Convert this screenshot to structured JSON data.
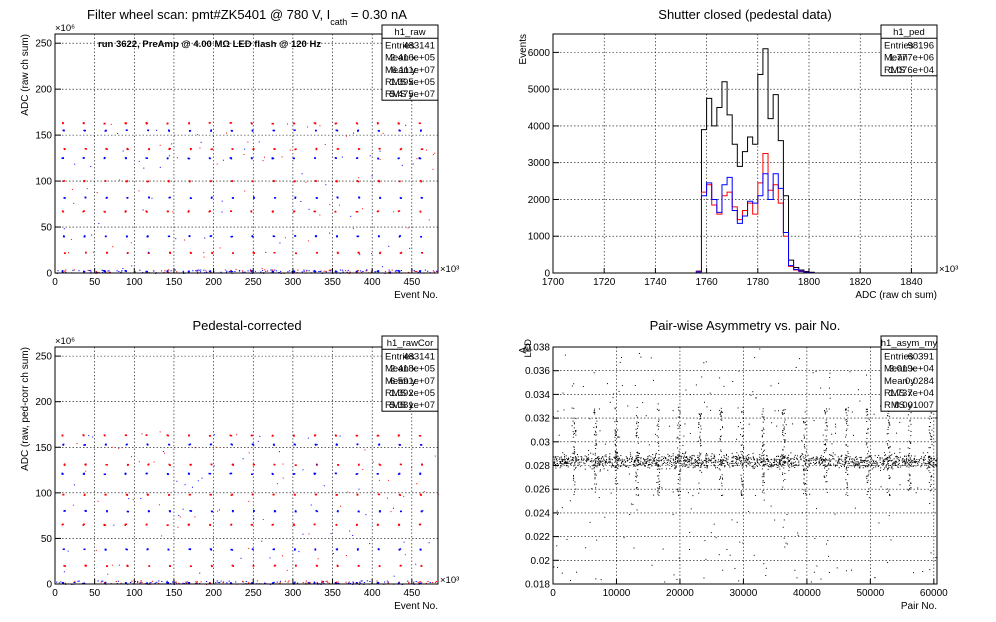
{
  "chart_data": [
    {
      "type": "scatter",
      "title": "Filter wheel scan: pmt#ZK5401 @   780 V, I",
      "title_sub": "cath",
      "title_tail": " = 0.30 nA",
      "annotation": "run 3622, PreAmp @ 4.00 MΩ LED flash @  120 Hz",
      "xlabel": "Event No.",
      "ylabel": "ADC (raw ch sum)",
      "x_exponent": "×10³",
      "y_exponent": "×10⁶",
      "xlim": [
        0,
        483
      ],
      "ylim": [
        0,
        260
      ],
      "x_ticks": [
        0,
        50,
        100,
        150,
        200,
        250,
        300,
        350,
        400,
        450
      ],
      "x_tick_labels": [
        "0",
        "50",
        "100",
        "150",
        "200",
        "250",
        "300",
        "350",
        "400",
        "450"
      ],
      "y_ticks": [
        0,
        50,
        100,
        150,
        200,
        250
      ],
      "y_tick_labels": [
        "0",
        "50",
        "100",
        "150",
        "200",
        "250"
      ],
      "levels": [
        163,
        155,
        135,
        125,
        100,
        82,
        67,
        40,
        22,
        2
      ],
      "period": 26.5,
      "stats": {
        "name": "h1_raw",
        "rows": [
          {
            "label": "Entries",
            "value": "483141"
          },
          {
            "label": "Mean x",
            "value": "2.416e+05"
          },
          {
            "label": "Mean y",
            "value": "6.111e+07"
          },
          {
            "label": "RMS x",
            "value": "1.395e+05"
          },
          {
            "label": "RMS y",
            "value": "5.475e+07"
          }
        ]
      },
      "colors": {
        "a": "#0000ff",
        "b": "#ff0000"
      }
    },
    {
      "type": "line",
      "title": "Shutter closed (pedestal data)",
      "xlabel": "ADC (raw ch sum)",
      "ylabel": "Events",
      "x_exponent": "×10³",
      "xlim": [
        1700,
        1850
      ],
      "ylim": [
        0,
        6500
      ],
      "x_ticks": [
        1700,
        1720,
        1740,
        1760,
        1780,
        1800,
        1820,
        1840
      ],
      "x_tick_labels": [
        "1700",
        "1720",
        "1740",
        "1760",
        "1780",
        "1800",
        "1820",
        "1840"
      ],
      "y_ticks": [
        0,
        1000,
        2000,
        3000,
        4000,
        5000,
        6000
      ],
      "y_tick_labels": [
        "0",
        "1000",
        "2000",
        "3000",
        "4000",
        "5000",
        "6000"
      ],
      "bin_start": 1756,
      "bin_width": 2,
      "series": [
        {
          "color": "#000000",
          "values": [
            50,
            3900,
            4750,
            4000,
            4500,
            5200,
            4300,
            3500,
            2900,
            3300,
            3700,
            3500,
            5400,
            6100,
            4200,
            4850,
            3600,
            2100,
            350,
            150,
            80,
            40,
            20
          ]
        },
        {
          "color": "#ff0000",
          "values": [
            40,
            2200,
            2400,
            1850,
            1600,
            2100,
            2200,
            1800,
            1450,
            1700,
            1900,
            1600,
            2450,
            3250,
            2250,
            2400,
            1900,
            1000,
            180,
            80,
            40,
            20,
            10
          ]
        },
        {
          "color": "#0000ff",
          "values": [
            30,
            2100,
            2450,
            2000,
            1650,
            2400,
            2600,
            1700,
            1350,
            1550,
            1950,
            1900,
            2100,
            2700,
            2000,
            2700,
            2300,
            1100,
            200,
            100,
            50,
            20,
            10
          ]
        }
      ],
      "stats": {
        "name": "h1_ped",
        "rows": [
          {
            "label": "Entries",
            "value": "98196"
          },
          {
            "label": "Mean",
            "value": "1.777e+06"
          },
          {
            "label": "RMS",
            "value": "1.076e+04"
          }
        ]
      }
    },
    {
      "type": "scatter",
      "title": "Pedestal-corrected",
      "xlabel": "Event No.",
      "ylabel": "ADC (raw, ped-corr ch sum)",
      "x_exponent": "×10³",
      "y_exponent": "×10⁶",
      "xlim": [
        0,
        483
      ],
      "ylim": [
        0,
        260
      ],
      "x_ticks": [
        0,
        50,
        100,
        150,
        200,
        250,
        300,
        350,
        400,
        450
      ],
      "x_tick_labels": [
        "0",
        "50",
        "100",
        "150",
        "200",
        "250",
        "300",
        "350",
        "400",
        "450"
      ],
      "y_ticks": [
        0,
        50,
        100,
        150,
        200,
        250
      ],
      "y_tick_labels": [
        "0",
        "50",
        "100",
        "150",
        "200",
        "250"
      ],
      "levels": [
        163,
        153,
        131,
        121,
        98,
        80,
        65,
        38,
        20,
        1
      ],
      "period": 26.5,
      "stats": {
        "name": "h1_rawCor",
        "rows": [
          {
            "label": "Entries",
            "value": "483141"
          },
          {
            "label": "Mean x",
            "value": "2.418e+05"
          },
          {
            "label": "Mean y",
            "value": "6.591e+07"
          },
          {
            "label": "RMS x",
            "value": "1.392e+05"
          },
          {
            "label": "RMS y",
            "value": "5.381e+07"
          }
        ]
      },
      "colors": {
        "a": "#0000ff",
        "b": "#ff0000"
      }
    },
    {
      "type": "scatter",
      "title": "Pair-wise Asymmetry vs. pair No.",
      "xlabel": "Pair No.",
      "ylabel": "A",
      "ylabel_sub": "LED",
      "xlim": [
        0,
        60500
      ],
      "ylim": [
        0.018,
        0.038
      ],
      "x_ticks": [
        0,
        10000,
        20000,
        30000,
        40000,
        50000,
        60000
      ],
      "x_tick_labels": [
        "0",
        "10000",
        "20000",
        "30000",
        "40000",
        "50000",
        "60000"
      ],
      "y_ticks": [
        0.018,
        0.02,
        0.022,
        0.024,
        0.026,
        0.028,
        0.03,
        0.032,
        0.034,
        0.036,
        0.038
      ],
      "y_tick_labels": [
        "0.018",
        "0.02",
        "0.022",
        "0.024",
        "0.026",
        "0.028",
        "0.03",
        "0.032",
        "0.034",
        "0.036",
        "0.038"
      ],
      "band_center": 0.0284,
      "band_halfwidth": 0.0006,
      "spike_pairs": [
        3300,
        6600,
        9900,
        13200,
        16500,
        19800,
        23100,
        26400,
        29700,
        33000,
        36300,
        39600,
        42900,
        46200,
        49500,
        52800,
        56100,
        59400
      ],
      "stats": {
        "name": "h1_asym_my",
        "rows": [
          {
            "label": "Entries",
            "value": "60391"
          },
          {
            "label": "Mean x",
            "value": "3.019e+04"
          },
          {
            "label": "Mean y",
            "value": "0.0284"
          },
          {
            "label": "RMS x",
            "value": "1.737e+04"
          },
          {
            "label": "RMS y",
            "value": "0.001007"
          }
        ]
      }
    }
  ]
}
